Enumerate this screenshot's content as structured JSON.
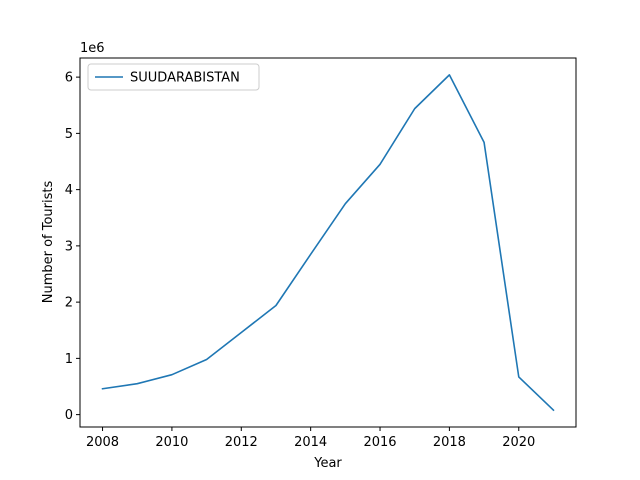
{
  "chart_data": {
    "type": "line",
    "title": "",
    "xlabel": "Year",
    "ylabel": "Number of Tourists",
    "offset_text": "1e6",
    "x": [
      2008,
      2009,
      2010,
      2011,
      2012,
      2013,
      2014,
      2015,
      2016,
      2017,
      2018,
      2019,
      2020,
      2021
    ],
    "series": [
      {
        "name": " SUUDARABISTAN",
        "color": "#1f77b4",
        "values": [
          460000,
          550000,
          710000,
          980000,
          1460000,
          1940000,
          2850000,
          3750000,
          4450000,
          5440000,
          6040000,
          4840000,
          670000,
          80000
        ]
      }
    ],
    "xlim": [
      2007.35,
      2021.65
    ],
    "ylim": [
      -220000,
      6340000
    ],
    "xticks": [
      2008,
      2010,
      2012,
      2014,
      2016,
      2018,
      2020
    ],
    "xtick_labels": [
      "2008",
      "2010",
      "2012",
      "2014",
      "2016",
      "2018",
      "2020"
    ],
    "yticks": [
      0,
      1000000,
      2000000,
      3000000,
      4000000,
      5000000,
      6000000
    ],
    "ytick_labels": [
      "0",
      "1",
      "2",
      "3",
      "4",
      "5",
      "6"
    ],
    "grid": false,
    "legend_position": "top-left"
  }
}
